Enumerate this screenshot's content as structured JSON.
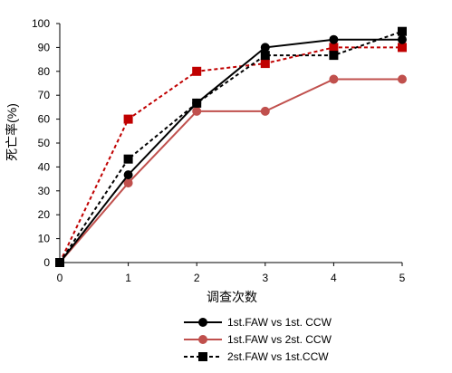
{
  "chart_data": {
    "type": "line",
    "xlabel": "调查次数",
    "ylabel": "死亡率(%)",
    "x": [
      0,
      1,
      2,
      3,
      4,
      5
    ],
    "xlim": [
      0,
      5
    ],
    "ylim": [
      0,
      100
    ],
    "xticks": [
      "0",
      "1",
      "2",
      "3",
      "4",
      "5"
    ],
    "yticks": [
      "0",
      "10",
      "20",
      "30",
      "40",
      "50",
      "60",
      "70",
      "80",
      "90",
      "100"
    ],
    "grid": false,
    "legend_position": "bottom",
    "series": [
      {
        "name": "1st.FAW vs 1st. CCW",
        "values": [
          0,
          36.7,
          66.7,
          90,
          93.3,
          93.3
        ],
        "color": "#000000",
        "marker": "circle",
        "line": "solid"
      },
      {
        "name": "1st.FAW vs 2st. CCW",
        "values": [
          0,
          33.3,
          63.3,
          63.3,
          76.7,
          76.7
        ],
        "color": "#c0504d",
        "marker": "circle",
        "line": "solid"
      },
      {
        "name": "2st.FAW vs 1st.CCW",
        "values": [
          0,
          43.3,
          66.7,
          86.7,
          86.7,
          96.7
        ],
        "color": "#000000",
        "marker": "square",
        "line": "dashed"
      },
      {
        "name": "",
        "values": [
          0,
          60,
          80,
          83.3,
          90,
          90
        ],
        "color": "#c00000",
        "marker": "square",
        "line": "dashed"
      }
    ]
  }
}
